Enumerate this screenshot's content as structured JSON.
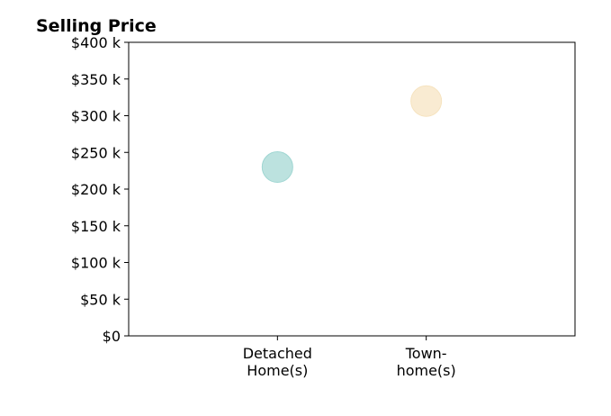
{
  "chart_data": {
    "type": "scatter",
    "title": "Selling Price",
    "xlabel": "",
    "ylabel": "",
    "categories": [
      [
        "Detached",
        "Home(s)"
      ],
      [
        "Town-",
        "home(s)"
      ]
    ],
    "x_positions": [
      1,
      2
    ],
    "xlim": [
      0,
      3
    ],
    "ylim": [
      0,
      400000
    ],
    "yticks": [
      0,
      50000,
      100000,
      150000,
      200000,
      250000,
      300000,
      350000,
      400000
    ],
    "ytick_labels": [
      "$0",
      "$50 k",
      "$100 k",
      "$150 k",
      "$200 k",
      "$250 k",
      "$300 k",
      "$350 k",
      "$400 k"
    ],
    "points": [
      {
        "category": "Detached Home(s)",
        "value": 230000,
        "color": "#9fd6d2"
      },
      {
        "category": "Town-home(s)",
        "value": 320000,
        "color": "#f6e3bf"
      }
    ],
    "grid": false,
    "legend": "none"
  }
}
